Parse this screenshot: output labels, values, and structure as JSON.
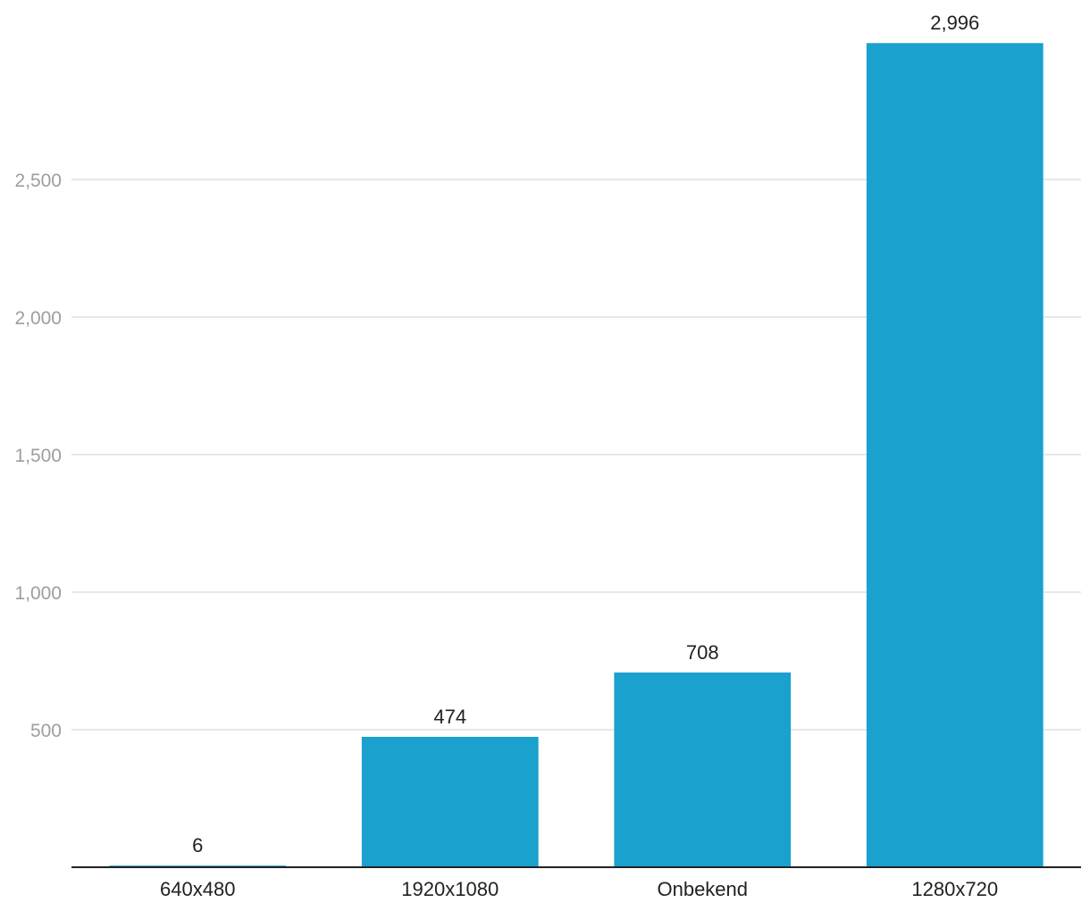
{
  "chart_data": {
    "type": "bar",
    "title": "",
    "xlabel": "",
    "ylabel": "",
    "categories": [
      "640x480",
      "1920x1080",
      "Onbekend",
      "1280x720"
    ],
    "values": [
      6,
      474,
      708,
      2996
    ],
    "data_labels": [
      "6",
      "474",
      "708",
      "2,996"
    ],
    "ylim": [
      0,
      3000
    ],
    "yticks": [
      500,
      1000,
      1500,
      2000,
      2500
    ],
    "ytick_labels": [
      "500",
      "1,000",
      "1,500",
      "2,000",
      "2,500"
    ],
    "grid": true,
    "legend": "none",
    "bar_color": "#1aa1ce"
  }
}
